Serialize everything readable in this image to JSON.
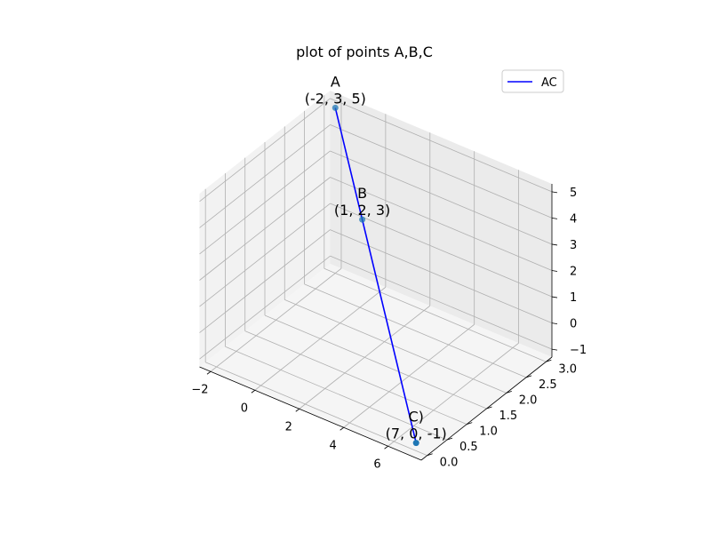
{
  "chart_data": {
    "type": "scatter3d",
    "title": "plot of points A,B,C",
    "points": [
      {
        "name": "A",
        "x": -2,
        "y": 3,
        "z": 5,
        "label": "A\n(-2, 3, 5)"
      },
      {
        "name": "B",
        "x": 1,
        "y": 2,
        "z": 3,
        "label": "B\n(1, 2, 3)"
      },
      {
        "name": "C",
        "x": 7,
        "y": 0,
        "z": -1,
        "label": "C)\n(7, 0, -1)"
      }
    ],
    "series": [
      {
        "name": "AC",
        "type": "line",
        "from": "A",
        "to": "C",
        "color": "#0000ff"
      }
    ],
    "x_ticks": [
      "−2",
      "0",
      "2",
      "4",
      "6"
    ],
    "y_ticks": [
      "0.0",
      "0.5",
      "1.0",
      "1.5",
      "2.0",
      "2.5",
      "3.0"
    ],
    "z_ticks": [
      "−1",
      "0",
      "1",
      "2",
      "3",
      "4",
      "5"
    ],
    "xlim": [
      -2.5,
      7.5
    ],
    "ylim": [
      -0.15,
      3.15
    ],
    "zlim": [
      -1.3,
      5.3
    ],
    "grid": true,
    "legend": {
      "placement": "top-right",
      "entries": [
        "AC"
      ]
    },
    "marker_color": "#1f77b4"
  }
}
